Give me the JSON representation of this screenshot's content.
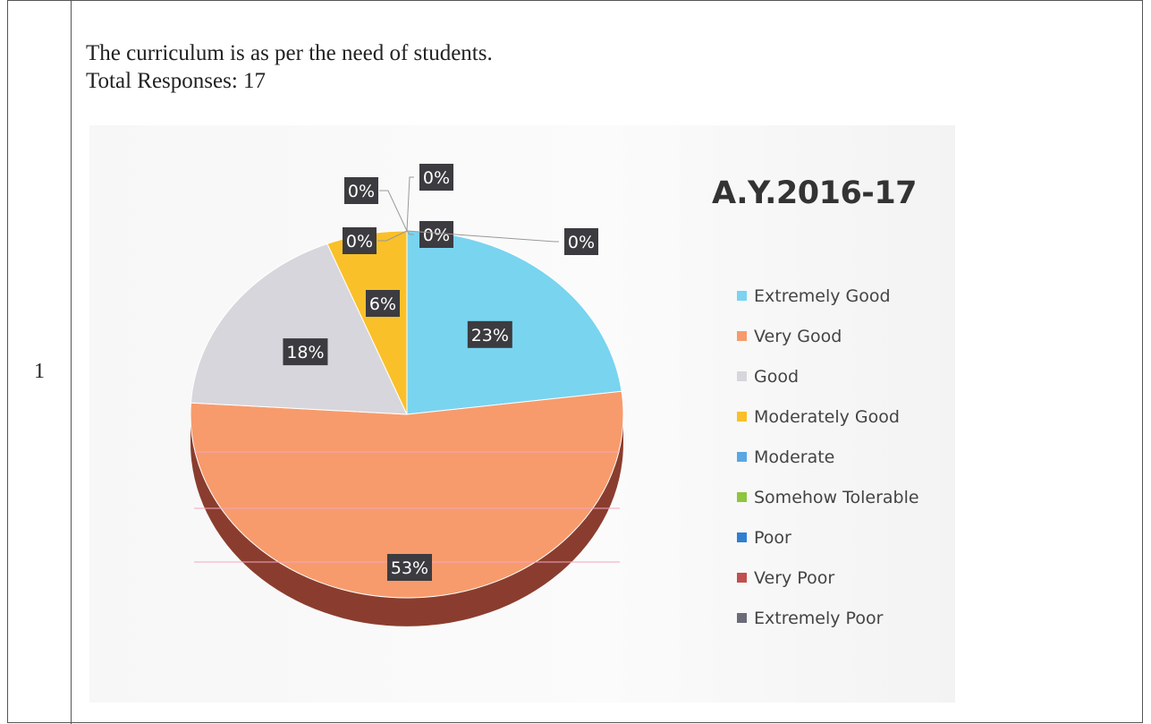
{
  "row_number": "1",
  "question": "The curriculum is as per the need of students.",
  "total_responses": "Total Responses: 17",
  "chart_data": {
    "type": "pie",
    "title": "A.Y.2016-17",
    "legend_position": "right",
    "categories": [
      "Extremely Good",
      "Very Good",
      "Good",
      "Moderately Good",
      "Moderate",
      "Somehow Tolerable",
      "Poor",
      "Very Poor",
      "Extremely Poor"
    ],
    "values": [
      23,
      53,
      18,
      6,
      0,
      0,
      0,
      0,
      0
    ],
    "data_labels": [
      "23%",
      "53%",
      "18%",
      "6%",
      "0%",
      "0%",
      "0%",
      "0%",
      "0%"
    ],
    "colors": [
      "#79d4f0",
      "#f79b6c",
      "#d6d6dc",
      "#f9c02a",
      "#5aa7e3",
      "#8dc63f",
      "#2f7fd1",
      "#c0504d",
      "#6b6b7a"
    ]
  }
}
